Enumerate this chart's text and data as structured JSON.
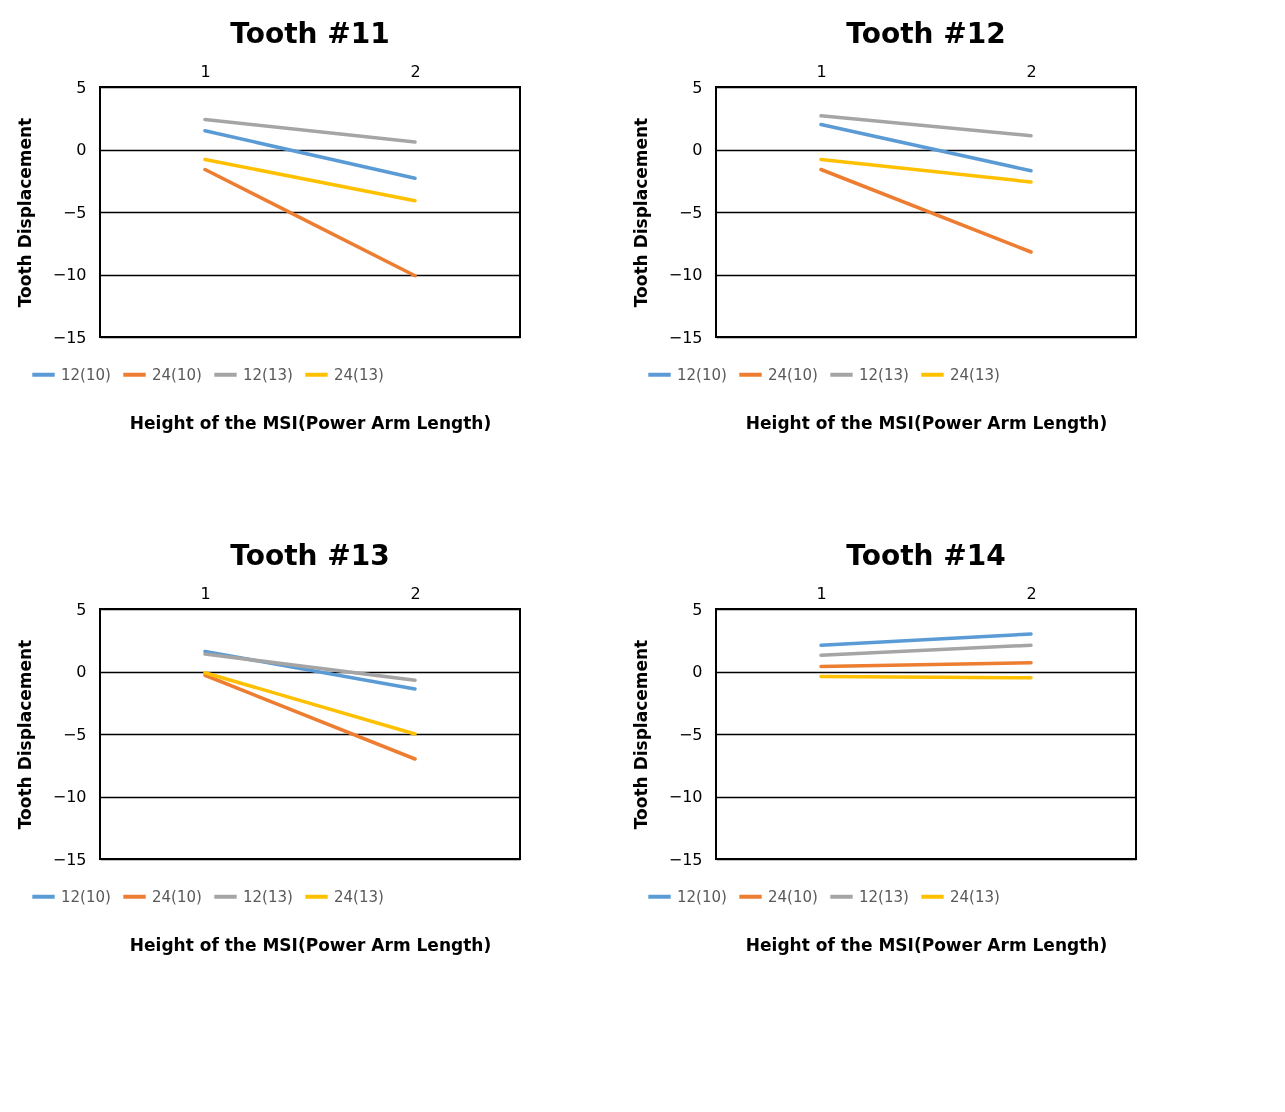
{
  "chart_data": [
    {
      "type": "line",
      "title": "Tooth #11",
      "xlabel": "Height of the MSI(Power Arm Length)",
      "ylabel": "Tooth Displacement",
      "categories": [
        "1",
        "2"
      ],
      "ylim": [
        -15,
        5
      ],
      "yticks": [
        -15,
        -10,
        -5,
        0,
        5
      ],
      "grid": "y",
      "legend": "bottom",
      "series": [
        {
          "name": "12(10)",
          "color": "#5b9bd5",
          "values": [
            1.5,
            -2.3
          ]
        },
        {
          "name": "24(10)",
          "color": "#ed7d31",
          "values": [
            -1.6,
            -10.1
          ]
        },
        {
          "name": "12(13)",
          "color": "#a5a5a5",
          "values": [
            2.4,
            0.6
          ]
        },
        {
          "name": "24(13)",
          "color": "#ffc000",
          "values": [
            -0.8,
            -4.1
          ]
        }
      ]
    },
    {
      "type": "line",
      "title": "Tooth #12",
      "xlabel": "Height of the MSI(Power Arm Length)",
      "ylabel": "Tooth Displacement",
      "categories": [
        "1",
        "2"
      ],
      "ylim": [
        -15,
        5
      ],
      "yticks": [
        -15,
        -10,
        -5,
        0,
        5
      ],
      "grid": "y",
      "legend": "bottom",
      "series": [
        {
          "name": "12(10)",
          "color": "#5b9bd5",
          "values": [
            2.0,
            -1.7
          ]
        },
        {
          "name": "24(10)",
          "color": "#ed7d31",
          "values": [
            -1.6,
            -8.2
          ]
        },
        {
          "name": "12(13)",
          "color": "#a5a5a5",
          "values": [
            2.7,
            1.1
          ]
        },
        {
          "name": "24(13)",
          "color": "#ffc000",
          "values": [
            -0.8,
            -2.6
          ]
        }
      ]
    },
    {
      "type": "line",
      "title": "Tooth #13",
      "xlabel": "Height of the MSI(Power Arm Length)",
      "ylabel": "Tooth Displacement",
      "categories": [
        "1",
        "2"
      ],
      "ylim": [
        -15,
        5
      ],
      "yticks": [
        -15,
        -10,
        -5,
        0,
        5
      ],
      "grid": "y",
      "legend": "bottom",
      "series": [
        {
          "name": "12(10)",
          "color": "#5b9bd5",
          "values": [
            1.6,
            -1.4
          ]
        },
        {
          "name": "24(10)",
          "color": "#ed7d31",
          "values": [
            -0.3,
            -7.0
          ]
        },
        {
          "name": "12(13)",
          "color": "#a5a5a5",
          "values": [
            1.4,
            -0.7
          ]
        },
        {
          "name": "24(13)",
          "color": "#ffc000",
          "values": [
            -0.1,
            -5.0
          ]
        }
      ]
    },
    {
      "type": "line",
      "title": "Tooth #14",
      "xlabel": "Height of the MSI(Power Arm Length)",
      "ylabel": "Tooth Displacement",
      "categories": [
        "1",
        "2"
      ],
      "ylim": [
        -15,
        5
      ],
      "yticks": [
        -15,
        -10,
        -5,
        0,
        5
      ],
      "grid": "y",
      "legend": "bottom",
      "series": [
        {
          "name": "12(10)",
          "color": "#5b9bd5",
          "values": [
            2.1,
            3.0
          ]
        },
        {
          "name": "24(10)",
          "color": "#ed7d31",
          "values": [
            0.4,
            0.7
          ]
        },
        {
          "name": "12(13)",
          "color": "#a5a5a5",
          "values": [
            1.3,
            2.1
          ]
        },
        {
          "name": "24(13)",
          "color": "#ffc000",
          "values": [
            -0.4,
            -0.5
          ]
        }
      ]
    }
  ]
}
